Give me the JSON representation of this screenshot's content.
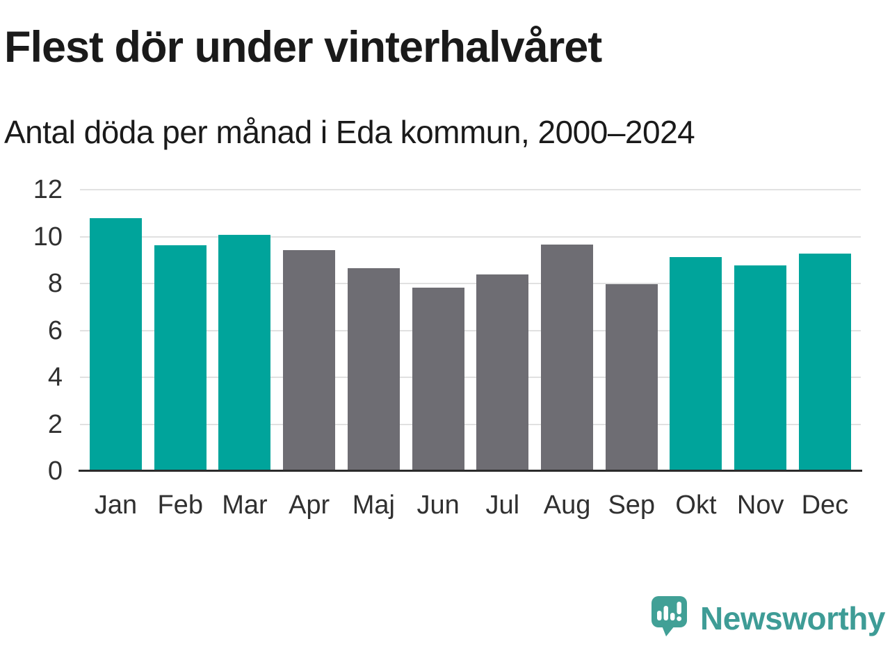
{
  "header": {
    "title": "Flest dör under vinterhalvåret",
    "subtitle": "Antal döda per månad i Eda kommun, 2000–2024"
  },
  "chart_data": {
    "type": "bar",
    "title": "Flest dör under vinterhalvåret",
    "subtitle": "Antal döda per månad i Eda kommun, 2000–2024",
    "categories": [
      "Jan",
      "Feb",
      "Mar",
      "Apr",
      "Maj",
      "Jun",
      "Jul",
      "Aug",
      "Sep",
      "Okt",
      "Nov",
      "Dec"
    ],
    "values": [
      10.8,
      9.63,
      10.08,
      9.42,
      8.66,
      7.81,
      8.38,
      9.65,
      7.96,
      9.14,
      8.78,
      9.26
    ],
    "bar_colors": [
      "winter",
      "winter",
      "winter",
      "summer",
      "summer",
      "summer",
      "summer",
      "summer",
      "summer",
      "winter",
      "winter",
      "winter"
    ],
    "colors": {
      "winter": "#00a49b",
      "summer": "#6e6d73"
    },
    "xlabel": "",
    "ylabel": "",
    "ylim": [
      0,
      12
    ],
    "yticks": [
      0,
      2,
      4,
      6,
      8,
      10,
      12
    ],
    "grid": true,
    "legend": "none"
  },
  "theme": {
    "heading": "#1a1a1a",
    "text": "#303030",
    "grid": "#e1e1e1",
    "axis": "#2b2b2b",
    "brand": "#3e9c96",
    "brand_icon": "#41a096"
  },
  "footer": {
    "brand": "Newsworthy",
    "logo_icon": "speech-bubble-bar-chart-icon"
  }
}
